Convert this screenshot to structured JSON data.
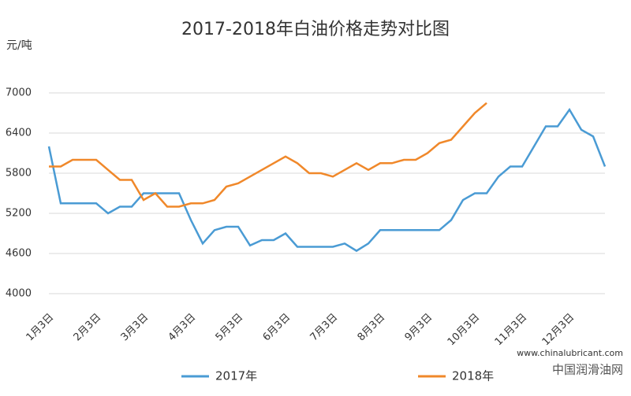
{
  "chart_data": {
    "type": "line",
    "title": "2017-2018年白油价格走势对比图",
    "y_label": "元/吨",
    "categories": [
      "1月3日",
      null,
      null,
      null,
      "2月3日",
      null,
      null,
      null,
      "3月3日",
      null,
      null,
      null,
      "4月3日",
      null,
      null,
      null,
      "5月3日",
      null,
      null,
      null,
      "6月3日",
      null,
      null,
      null,
      "7月3日",
      null,
      null,
      null,
      "8月3日",
      null,
      null,
      null,
      "9月3日",
      null,
      null,
      null,
      "10月3日",
      null,
      null,
      null,
      "11月3日",
      null,
      null,
      null,
      "12月3日",
      null,
      null,
      null
    ],
    "series": [
      {
        "name": "2017年",
        "color": "#4a9bd4",
        "values": [
          6200,
          5350,
          5350,
          5350,
          5350,
          5200,
          5300,
          5300,
          5500,
          5500,
          5500,
          5500,
          5100,
          4750,
          4950,
          5000,
          5000,
          4720,
          4800,
          4800,
          4900,
          4700,
          4700,
          4700,
          4700,
          4750,
          4640,
          4750,
          4950,
          4950,
          4950,
          4950,
          4950,
          4950,
          5100,
          5400,
          5500,
          5500,
          5750,
          5900,
          5900,
          6200,
          6500,
          6500,
          6750,
          6450,
          6350,
          5900
        ]
      },
      {
        "name": "2018年",
        "color": "#f0882a",
        "values": [
          5900,
          5900,
          6000,
          6000,
          6000,
          5850,
          5700,
          5700,
          5400,
          5500,
          5300,
          5300,
          5350,
          5350,
          5400,
          5600,
          5650,
          5750,
          5850,
          5950,
          6050,
          5950,
          5800,
          5800,
          5750,
          5850,
          5950,
          5850,
          5950,
          5950,
          6000,
          6000,
          6100,
          6250,
          6300,
          6500,
          6700,
          6850,
          null,
          null,
          null,
          null,
          null,
          null,
          null,
          null,
          null,
          null
        ]
      }
    ],
    "ylim": [
      4000,
      7000
    ],
    "yticks": [
      4000,
      4600,
      5200,
      5800,
      6400,
      7000
    ],
    "grid": true,
    "legend": "bottom",
    "annotations": [
      "www.chinalubricant.com",
      "中国润滑油网"
    ]
  }
}
